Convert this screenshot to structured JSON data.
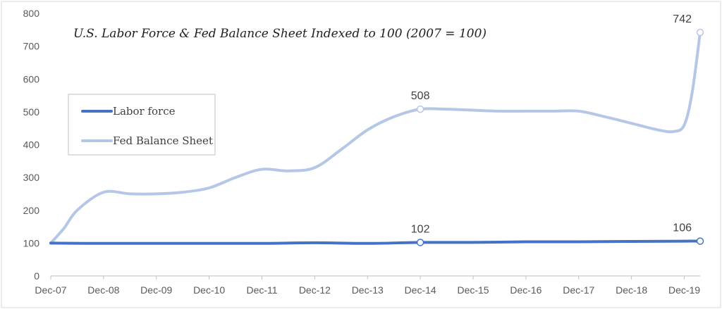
{
  "chart_data": {
    "type": "line",
    "title": "U.S. Labor Force & Fed Balance Sheet Indexed to 100 (2007 = 100)",
    "xlabel": "",
    "ylabel": "",
    "ylim": [
      0,
      800
    ],
    "yticks": [
      0,
      100,
      200,
      300,
      400,
      500,
      600,
      700,
      800
    ],
    "xlim": [
      0,
      12.3
    ],
    "categories": [
      "Dec-07",
      "Dec-08",
      "Dec-09",
      "Dec-10",
      "Dec-11",
      "Dec-12",
      "Dec-13",
      "Dec-14",
      "Dec-15",
      "Dec-16",
      "Dec-17",
      "Dec-18",
      "Dec-19"
    ],
    "grid": false,
    "legend_position": "left",
    "series": [
      {
        "name": "Labor force",
        "color": "#4472c4",
        "x": [
          0,
          1,
          2,
          3,
          4,
          5,
          6,
          7,
          8,
          9,
          10,
          11,
          12,
          12.3
        ],
        "values": [
          100,
          99,
          99,
          99,
          99,
          101,
          99,
          102,
          102,
          104,
          104,
          105,
          106,
          106
        ]
      },
      {
        "name": "Fed Balance Sheet",
        "color": "#b4c7e7",
        "x": [
          0,
          0.25,
          0.5,
          1,
          1.5,
          2,
          2.5,
          3,
          3.5,
          4,
          4.5,
          5,
          5.5,
          6,
          6.5,
          7,
          7.5,
          8,
          8.5,
          9,
          9.5,
          10,
          10.5,
          11,
          11.5,
          11.8,
          12,
          12.15,
          12.3
        ],
        "values": [
          100,
          145,
          200,
          255,
          250,
          250,
          255,
          268,
          300,
          325,
          320,
          330,
          385,
          445,
          485,
          508,
          508,
          505,
          502,
          502,
          502,
          502,
          485,
          465,
          445,
          440,
          460,
          560,
          742
        ]
      }
    ],
    "markers": [
      {
        "series": 0,
        "x": 7,
        "y": 102,
        "label": "102"
      },
      {
        "series": 0,
        "x": 12.3,
        "y": 106,
        "label": "106"
      },
      {
        "series": 1,
        "x": 7,
        "y": 508,
        "label": "508"
      },
      {
        "series": 1,
        "x": 12.3,
        "y": 742,
        "label": "742"
      }
    ]
  }
}
